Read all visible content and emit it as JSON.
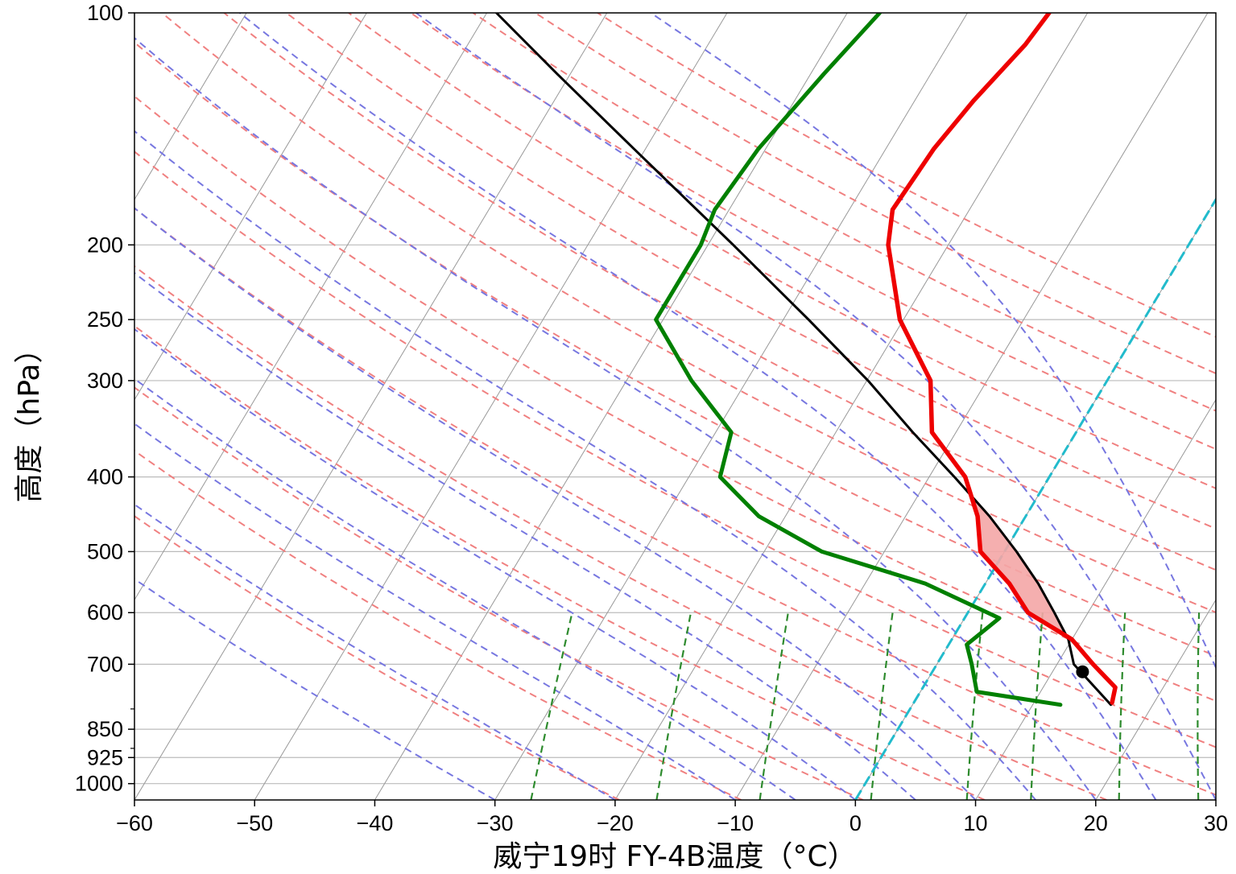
{
  "chart_data": {
    "type": "line",
    "subtype": "skew-T log-P thermodynamic diagram",
    "xlabel": "威宁19时 FY-4B温度（°C）",
    "ylabel": "高度（hPa）",
    "xlim": [
      -60,
      30
    ],
    "ylim": [
      1050,
      100
    ],
    "y_scale": "log",
    "x_ticks": [
      -60,
      -50,
      -40,
      -30,
      -20,
      -10,
      0,
      10,
      20,
      30
    ],
    "x_tick_labels": [
      "−60",
      "−50",
      "−40",
      "−30",
      "−20",
      "−10",
      "0",
      "10",
      "20",
      "30"
    ],
    "y_ticks": [
      1000,
      925,
      850,
      700,
      600,
      500,
      400,
      300,
      250,
      200,
      100
    ],
    "y_tick_labels": [
      "1000",
      "925",
      "850",
      "700",
      "600",
      "500",
      "400",
      "300",
      "250",
      "200",
      "100"
    ],
    "grid": true,
    "colors": {
      "temperature": "#ee0000",
      "dewpoint": "#008000",
      "parcel": "#000000",
      "dry_adiabats": "#f08080",
      "moist_adiabats": "#7777e0",
      "mixing_ratio": "#2e8b2e",
      "isotherm_0": "#22bbcc",
      "cape_fill": "#f4a6a6",
      "isotherms": "#999999",
      "isobars": "#bbbbbb"
    },
    "series": [
      {
        "key": "temperature",
        "pressure": [
          785,
          750,
          700,
          650,
          600,
          550,
          500,
          450,
          400,
          350,
          300,
          250,
          200,
          180,
          150,
          130,
          110,
          100
        ],
        "values": [
          16.5,
          16.0,
          13.0,
          10.0,
          5.0,
          2.0,
          -2.0,
          -4.0,
          -7.0,
          -12.0,
          -14.7,
          -20.3,
          -25.0,
          -26.4,
          -26.0,
          -25.1,
          -23.6,
          -23.2
        ]
      },
      {
        "key": "dewpoint",
        "pressure": [
          790,
          760,
          700,
          660,
          610,
          550,
          500,
          450,
          400,
          350,
          300,
          250,
          200,
          180,
          150,
          120,
          100
        ],
        "values": [
          12.3,
          4.7,
          2.9,
          1.5,
          2.9,
          -5.0,
          -15.2,
          -22.2,
          -27.4,
          -28.7,
          -34.6,
          -40.6,
          -40.6,
          -41.2,
          -40.6,
          -38.9,
          -37.3
        ]
      },
      {
        "key": "parcel",
        "pressure": [
          790,
          700,
          650,
          600,
          550,
          500,
          450,
          400,
          350,
          300,
          250,
          200,
          150,
          120,
          100
        ],
        "values": [
          16.5,
          11.4,
          9.7,
          7.2,
          4.4,
          1.0,
          -3.0,
          -7.9,
          -13.6,
          -19.9,
          -27.9,
          -37.9,
          -51.0,
          -61.1,
          -69.2
        ]
      }
    ],
    "lcl": {
      "pressure": 716,
      "temperature": 12.5
    },
    "dry_adiabat_thetas_K": [
      250,
      260,
      270,
      280,
      290,
      300,
      310,
      320,
      330,
      340,
      350,
      360,
      370,
      380,
      390,
      400,
      410
    ],
    "moist_adiabat_start_temps_C": [
      -30,
      -20,
      -10,
      -5,
      0,
      5,
      10,
      15,
      20,
      25,
      30,
      35
    ],
    "mixing_ratios_gkg": [
      0.4,
      1,
      2,
      4,
      7,
      10,
      16,
      24
    ],
    "isotherm_step": 10
  }
}
